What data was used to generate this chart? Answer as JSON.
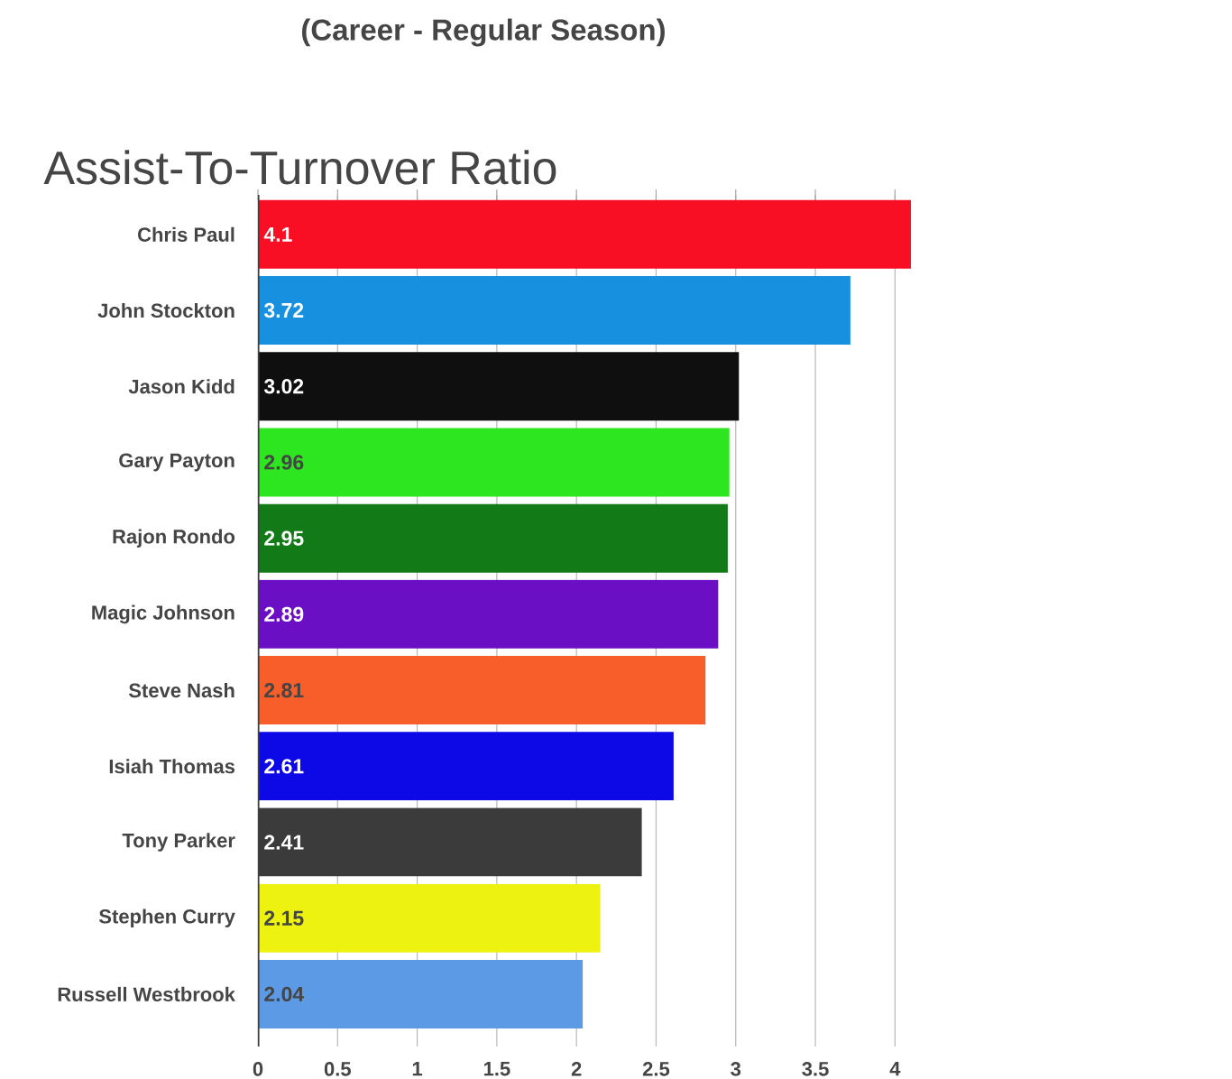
{
  "chart_data": {
    "type": "bar",
    "orientation": "horizontal",
    "title": "Assist-To-Turnover Ratio",
    "subtitle": "(Career - Regular Season)",
    "categories": [
      "Chris Paul",
      "John Stockton",
      "Jason Kidd",
      "Gary Payton",
      "Rajon Rondo",
      "Magic Johnson",
      "Steve Nash",
      "Isiah Thomas",
      "Tony Parker",
      "Stephen Curry",
      "Russell Westbrook"
    ],
    "values": [
      4.1,
      3.72,
      3.02,
      2.96,
      2.95,
      2.89,
      2.81,
      2.61,
      2.41,
      2.15,
      2.04
    ],
    "colors": [
      "#f90f23",
      "#1890e0",
      "#0f0f0f",
      "#2ee620",
      "#127a17",
      "#6a0fc4",
      "#f75e2a",
      "#0d08e6",
      "#3b3b3b",
      "#eef210",
      "#5c9ae6"
    ],
    "xlim": [
      0,
      4.1
    ],
    "xticks": [
      0,
      0.5,
      1,
      1.5,
      2,
      2.5,
      3,
      3.5,
      4
    ],
    "grid": "x",
    "data_labels": true
  }
}
